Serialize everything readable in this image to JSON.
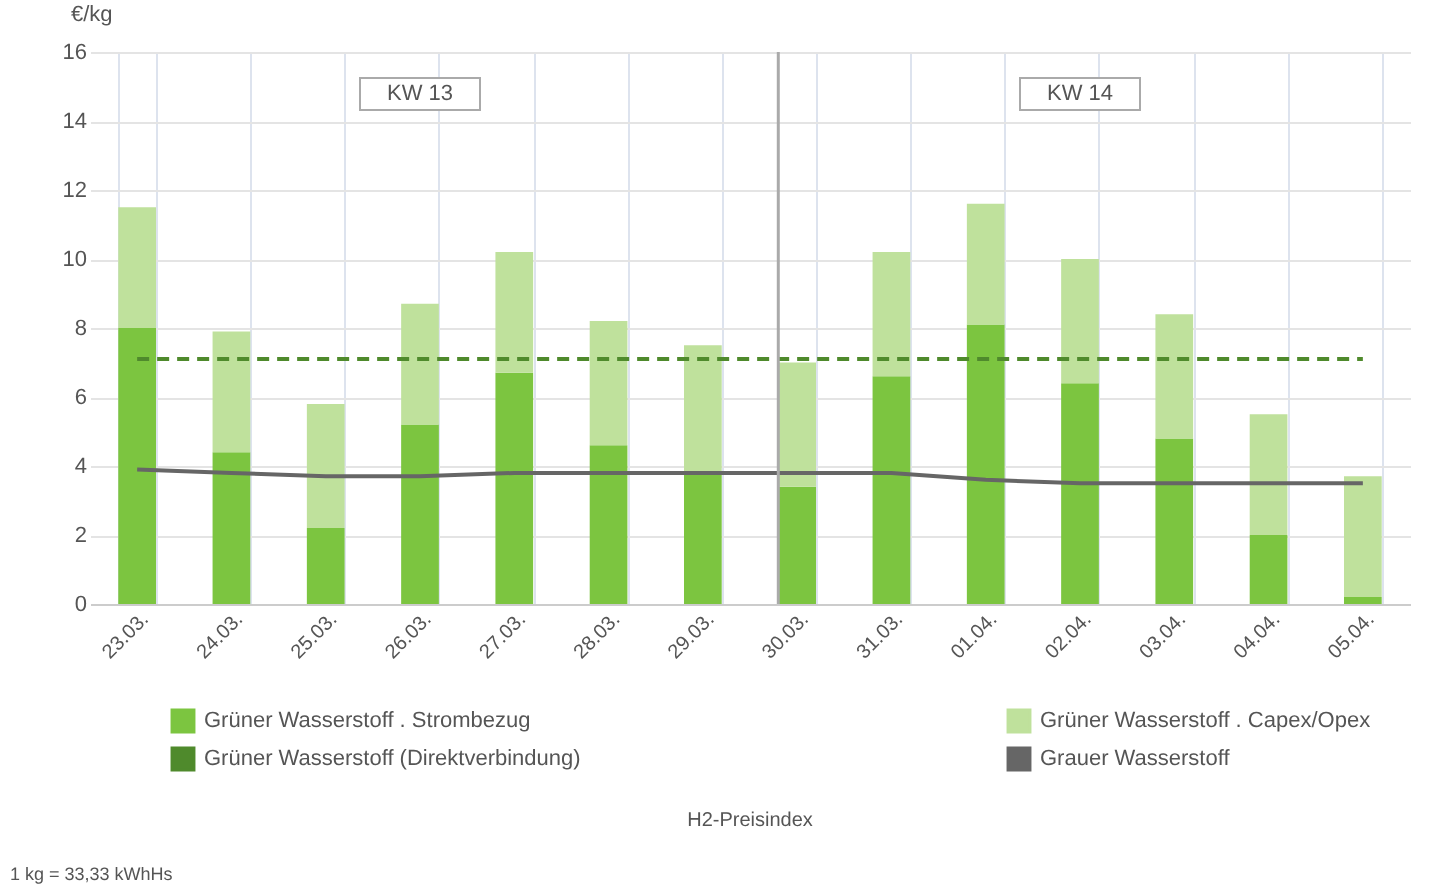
{
  "chart_data": {
    "type": "bar",
    "stacked": true,
    "ylabel": "€/kg",
    "categories": [
      "23.03.",
      "24.03.",
      "25.03.",
      "26.03.",
      "27.03.",
      "28.03.",
      "29.03.",
      "30.03.",
      "31.03.",
      "01.04.",
      "02.04.",
      "03.04.",
      "04.04.",
      "05.04."
    ],
    "series": [
      {
        "name": "Grüner Wasserstoff . Strombezug",
        "color": "#7cc540",
        "values": [
          8.0,
          4.4,
          2.2,
          5.2,
          6.7,
          4.6,
          3.8,
          3.4,
          6.6,
          8.1,
          6.4,
          4.8,
          2.0,
          0.2
        ]
      },
      {
        "name": "Grüner Wasserstoff . Capex/Opex",
        "color": "#bfe19c",
        "values": [
          3.5,
          3.5,
          3.6,
          3.5,
          3.5,
          3.6,
          3.7,
          3.6,
          3.6,
          3.5,
          3.6,
          3.6,
          3.5,
          3.5
        ]
      },
      {
        "name": "Grüner Wasserstoff (Direktverbindung)",
        "type": "line",
        "line_style": "dashed",
        "color": "#4f8a2c",
        "values": [
          7.1,
          7.1,
          7.1,
          7.1,
          7.1,
          7.1,
          7.1,
          7.1,
          7.1,
          7.1,
          7.1,
          7.1,
          7.1,
          7.1
        ]
      },
      {
        "name": "Grauer Wasserstoff",
        "type": "line",
        "line_style": "solid",
        "color": "#666666",
        "values": [
          3.9,
          3.8,
          3.7,
          3.7,
          3.8,
          3.8,
          3.8,
          3.8,
          3.8,
          3.6,
          3.5,
          3.5,
          3.5,
          3.5
        ]
      }
    ],
    "ylim": [
      0,
      16
    ],
    "yticks": [
      0,
      2,
      4,
      6,
      8,
      10,
      12,
      14,
      16
    ],
    "grid": true,
    "legend": "bottom",
    "ref_lines": [
      {
        "axis": "x",
        "value": "30.03.",
        "color": "#aaaaaa"
      }
    ],
    "annotations": [
      "KW 13",
      "KW 14",
      "H2-Preisindex",
      "1 kg = 33,33 kWhHs"
    ]
  }
}
